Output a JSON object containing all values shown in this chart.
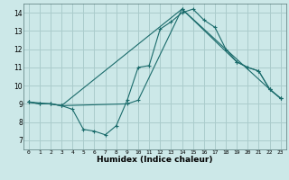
{
  "background_color": "#cce8e8",
  "grid_color": "#aacccc",
  "line_color": "#1a6b6b",
  "xlabel": "Humidex (Indice chaleur)",
  "xlim": [
    -0.5,
    23.5
  ],
  "ylim": [
    6.5,
    14.5
  ],
  "xticks": [
    0,
    1,
    2,
    3,
    4,
    5,
    6,
    7,
    8,
    9,
    10,
    11,
    12,
    13,
    14,
    15,
    16,
    17,
    18,
    19,
    20,
    21,
    22,
    23
  ],
  "yticks": [
    7,
    8,
    9,
    10,
    11,
    12,
    13,
    14
  ],
  "series1_x": [
    0,
    1,
    2,
    3,
    4,
    5,
    6,
    7,
    8,
    9,
    10,
    11,
    12,
    13,
    14,
    15,
    16,
    17,
    18,
    19,
    20,
    21,
    22,
    23
  ],
  "series1_y": [
    9.1,
    9.0,
    9.0,
    8.9,
    8.7,
    7.6,
    7.5,
    7.3,
    7.8,
    9.2,
    11.0,
    11.1,
    13.1,
    13.5,
    14.0,
    14.2,
    13.6,
    13.2,
    12.0,
    11.3,
    11.0,
    10.8,
    9.8,
    9.3
  ],
  "series2_x": [
    0,
    1,
    2,
    3,
    9,
    10,
    14,
    19,
    20,
    21,
    22,
    23
  ],
  "series2_y": [
    9.1,
    9.0,
    9.0,
    8.9,
    9.0,
    9.2,
    14.2,
    11.3,
    11.0,
    10.8,
    9.8,
    9.3
  ],
  "series3_x": [
    0,
    2,
    3,
    14,
    22,
    23
  ],
  "series3_y": [
    9.1,
    9.0,
    8.9,
    14.2,
    9.8,
    9.3
  ]
}
